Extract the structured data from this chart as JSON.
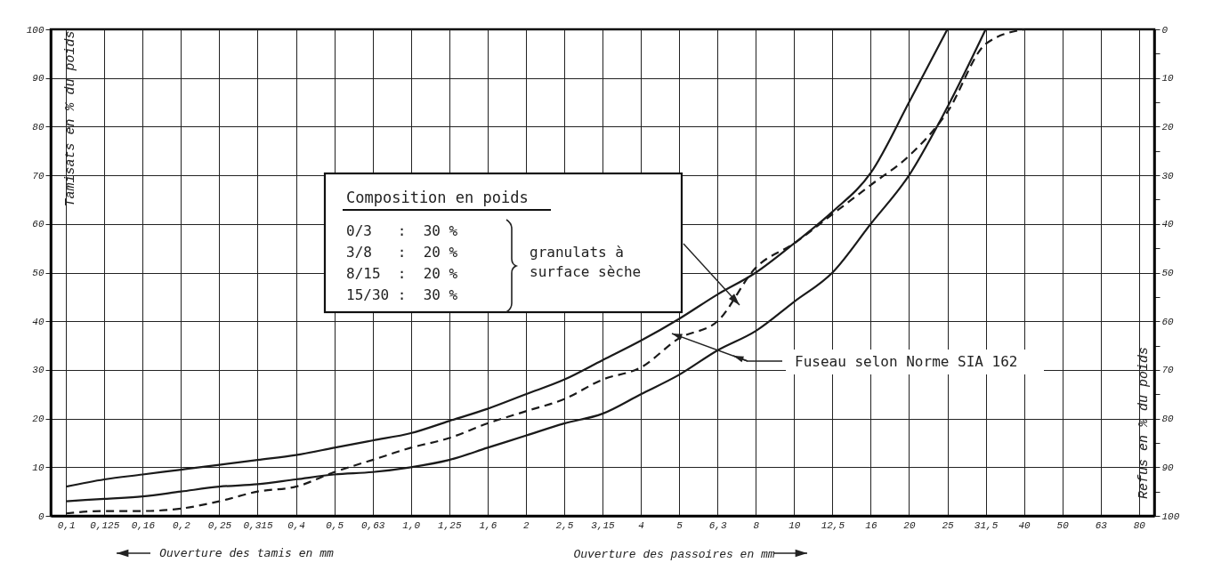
{
  "chart_data": {
    "type": "line",
    "xlabel": "Ouverture des passoires en mm",
    "ylabel": "Tamisats en % du poids",
    "y2label": "Refus en % du poids",
    "categories": [
      "0,1",
      "0,125",
      "0,16",
      "0,2",
      "0,25",
      "0,315",
      "0,4",
      "0,5",
      "0,63",
      "1,0",
      "1,25",
      "1,6",
      "2",
      "2,5",
      "3,15",
      "4",
      "5",
      "6,3",
      "8",
      "10",
      "12,5",
      "16",
      "20",
      "25",
      "31,5",
      "40",
      "50",
      "63",
      "80"
    ],
    "series": [
      {
        "color": "#1a1a1a",
        "values": [
          6,
          7.5,
          8.5,
          9.5,
          10.5,
          11.5,
          12.5,
          14,
          15.5,
          17,
          19.5,
          22,
          25,
          28,
          32,
          36,
          40.5,
          45.5,
          50,
          56,
          62.5,
          70.5,
          85,
          100,
          null,
          null,
          null,
          null,
          null
        ]
      },
      {
        "color": "#1a1a1a",
        "values": [
          3,
          3.5,
          4,
          5,
          6,
          6.5,
          7.5,
          8.5,
          9,
          10,
          11.5,
          14,
          16.5,
          19,
          21,
          25,
          29,
          34,
          38,
          44,
          50,
          60,
          70,
          84,
          100,
          null,
          null,
          null,
          null
        ]
      },
      {
        "color": "#1a1a1a",
        "line_style": "dashed",
        "values": [
          0.5,
          1,
          1,
          1.5,
          3,
          5,
          6,
          9,
          11.5,
          14,
          16,
          19,
          21.5,
          24,
          28,
          30.5,
          36.5,
          40,
          51,
          56,
          62,
          68,
          74,
          83,
          97,
          100,
          null,
          null,
          null
        ]
      }
    ],
    "ylim": [
      0,
      100
    ],
    "yticks": [
      0,
      {
        "value": 5,
        "label": null
      },
      10,
      {
        "value": 15,
        "label": null
      },
      20,
      {
        "value": 25,
        "label": null
      },
      30,
      {
        "value": 35,
        "label": null
      },
      40,
      {
        "value": 45,
        "label": null
      },
      50,
      {
        "value": 55,
        "label": null
      },
      60,
      {
        "value": 65,
        "label": null
      },
      70,
      {
        "value": 75,
        "label": null
      },
      80,
      {
        "value": 85,
        "label": null
      },
      90,
      {
        "value": 95,
        "label": null
      },
      100
    ],
    "y2lim": [
      100,
      0
    ],
    "y2ticks": [
      0,
      {
        "value": 5,
        "label": null
      },
      10,
      {
        "value": 15,
        "label": null
      },
      20,
      {
        "value": 25,
        "label": null
      },
      30,
      {
        "value": 35,
        "label": null
      },
      40,
      {
        "value": 45,
        "label": null
      },
      50,
      {
        "value": 55,
        "label": null
      },
      60,
      {
        "value": 65,
        "label": null
      },
      70,
      {
        "value": 75,
        "label": null
      },
      80,
      {
        "value": 85,
        "label": null
      },
      90,
      {
        "value": 95,
        "label": null
      },
      100
    ],
    "grid": true,
    "annotations": [
      "Composition en poids",
      "0/3   :  30 %",
      "3/8   :  20 %",
      "8/15  :  20 %",
      "15/30 :  30 %",
      "granulats à\nsurface sèche",
      "Fuseau selon Norme SIA 162",
      "Ouverture des tamis en mm"
    ]
  }
}
